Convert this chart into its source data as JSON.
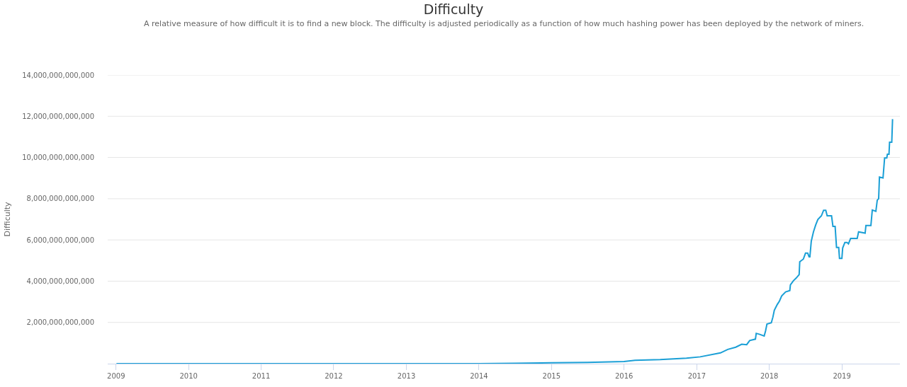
{
  "chart_data": {
    "type": "line",
    "title": "Difficulty",
    "subtitle": "A relative measure of how difficult it is to find a new block. The difficulty is adjusted periodically as a function of how much hashing power has been deployed by the network of miners.",
    "ylabel": "Difficulty",
    "x": [
      "2009-01-03",
      "2010-01-01",
      "2011-01-01",
      "2012-01-01",
      "2013-01-01",
      "2014-01-01",
      "2014-07-01",
      "2015-01-01",
      "2015-07-01",
      "2016-01-01",
      "2016-02-25",
      "2016-07-01",
      "2016-11-10",
      "2017-01-18",
      "2017-04-30",
      "2017-06-06",
      "2017-07-16",
      "2017-08-15",
      "2017-09-09",
      "2017-09-24",
      "2017-10-23",
      "2017-10-27",
      "2017-11-14",
      "2017-12-06",
      "2017-12-13",
      "2017-12-20",
      "2018-01-11",
      "2018-01-19",
      "2018-01-26",
      "2018-02-10",
      "2018-02-21",
      "2018-03-04",
      "2018-03-24",
      "2018-04-14",
      "2018-04-17",
      "2018-05-02",
      "2018-05-16",
      "2018-05-31",
      "2018-06-03",
      "2018-06-21",
      "2018-07-02",
      "2018-07-13",
      "2018-07-20",
      "2018-07-24",
      "2018-07-31",
      "2018-08-11",
      "2018-08-22",
      "2018-09-02",
      "2018-09-20",
      "2018-10-01",
      "2018-10-12",
      "2018-10-19",
      "2018-11-10",
      "2018-11-17",
      "2018-11-28",
      "2018-12-05",
      "2018-12-16",
      "2018-12-20",
      "2019-01-01",
      "2019-01-05",
      "2019-01-16",
      "2019-01-27",
      "2019-02-03",
      "2019-02-14",
      "2019-03-19",
      "2019-03-26",
      "2019-04-28",
      "2019-05-02",
      "2019-05-27",
      "2019-06-03",
      "2019-06-21",
      "2019-06-28",
      "2019-07-05",
      "2019-07-09",
      "2019-07-27",
      "2019-08-04",
      "2019-08-15",
      "2019-08-18",
      "2019-08-26",
      "2019-08-29",
      "2019-09-09",
      "2019-09-13"
    ],
    "series": [
      {
        "color": "#1a9fd6",
        "values": [
          0,
          0,
          0,
          0,
          0,
          0,
          20000000000.0,
          40000000000.0,
          60000000000.0,
          100000000000.0,
          160000000000.0,
          200000000000.0,
          270000000000.0,
          330000000000.0,
          520000000000.0,
          690000000000.0,
          800000000000.0,
          940000000000.0,
          920000000000.0,
          1120000000000.0,
          1190000000000.0,
          1470000000000.0,
          1420000000000.0,
          1340000000000.0,
          1590000000000.0,
          1920000000000.0,
          1980000000000.0,
          2260000000000.0,
          2590000000000.0,
          2870000000000.0,
          3040000000000.0,
          3280000000000.0,
          3480000000000.0,
          3540000000000.0,
          3820000000000.0,
          4020000000000.0,
          4150000000000.0,
          4320000000000.0,
          4940000000000.0,
          5070000000000.0,
          5360000000000.0,
          5360000000000.0,
          5180000000000.0,
          5180000000000.0,
          5940000000000.0,
          6390000000000.0,
          6720000000000.0,
          6990000000000.0,
          7170000000000.0,
          7440000000000.0,
          7440000000000.0,
          7170000000000.0,
          7170000000000.0,
          6660000000000.0,
          6660000000000.0,
          5640000000000.0,
          5640000000000.0,
          5100000000000.0,
          5100000000000.0,
          5610000000000.0,
          5880000000000.0,
          5880000000000.0,
          5810000000000.0,
          6070000000000.0,
          6070000000000.0,
          6390000000000.0,
          6330000000000.0,
          6700000000000.0,
          6700000000000.0,
          7450000000000.0,
          7390000000000.0,
          7930000000000.0,
          8000000000000.0,
          9050000000000.0,
          9010000000000.0,
          9980000000000.0,
          9980000000000.0,
          10160000000000.0,
          10160000000000.0,
          10740000000000.0,
          10740000000000.0,
          11860000000000.0
        ]
      }
    ],
    "xlim": [
      "2008-11-20",
      "2019-10-20"
    ],
    "xticks": [
      {
        "value": "2009-01-01",
        "label": "2009"
      },
      {
        "value": "2010-01-01",
        "label": "2010"
      },
      {
        "value": "2011-01-01",
        "label": "2011"
      },
      {
        "value": "2012-01-01",
        "label": "2012"
      },
      {
        "value": "2013-01-01",
        "label": "2013"
      },
      {
        "value": "2014-01-01",
        "label": "2014"
      },
      {
        "value": "2015-01-01",
        "label": "2015"
      },
      {
        "value": "2016-01-01",
        "label": "2016"
      },
      {
        "value": "2017-01-01",
        "label": "2017"
      },
      {
        "value": "2018-01-01",
        "label": "2018"
      },
      {
        "value": "2019-01-01",
        "label": "2019"
      }
    ],
    "ylim": [
      0,
      14000000000000
    ],
    "yticks": [
      {
        "value": 2000000000000,
        "label": "2,000,000,000,000"
      },
      {
        "value": 4000000000000,
        "label": "4,000,000,000,000"
      },
      {
        "value": 6000000000000,
        "label": "6,000,000,000,000"
      },
      {
        "value": 8000000000000,
        "label": "8,000,000,000,000"
      },
      {
        "value": 10000000000000,
        "label": "10,000,000,000,000"
      },
      {
        "value": 12000000000000,
        "label": "12,000,000,000,000"
      },
      {
        "value": 14000000000000,
        "label": "14,000,000,000,000"
      }
    ],
    "grid": "y",
    "marker": "none",
    "line_style": "solid"
  }
}
